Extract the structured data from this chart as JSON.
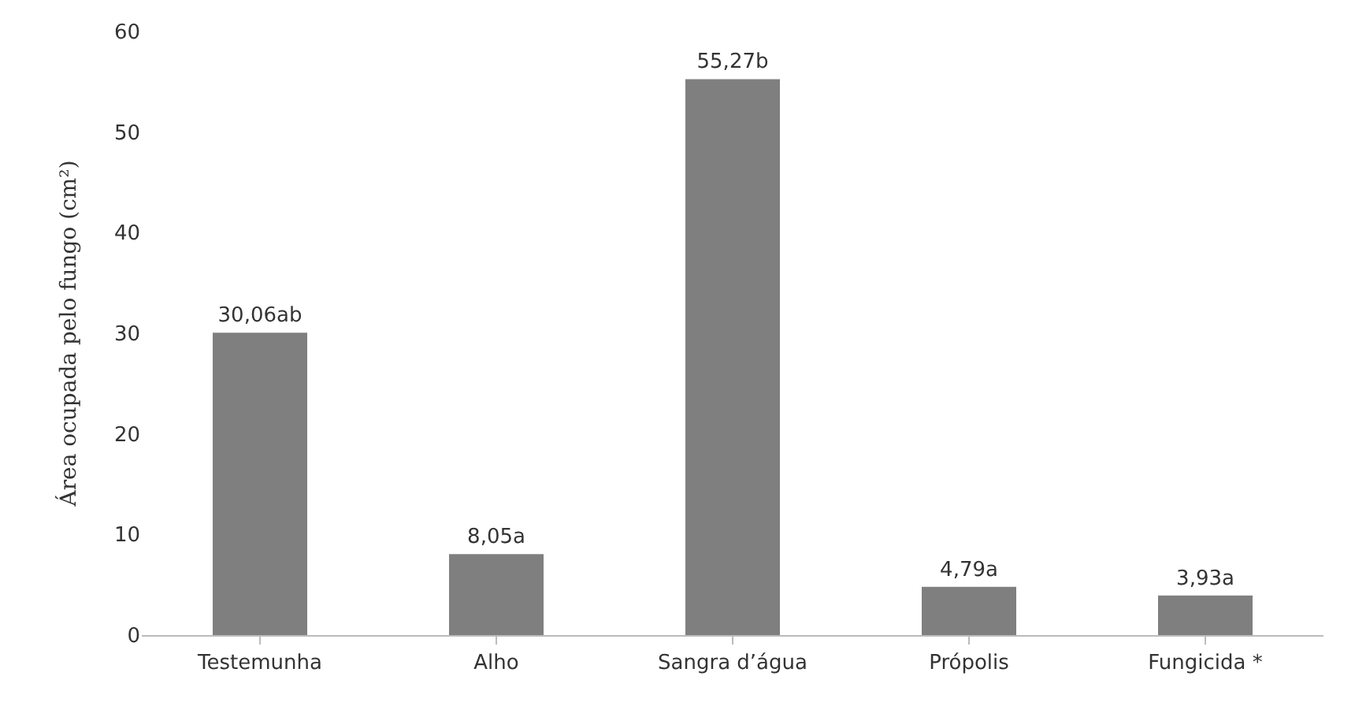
{
  "chart_data": {
    "type": "bar",
    "ylabel": "Área ocupada pelo fungo (cm²)",
    "categories": [
      "Testemunha",
      "Alho",
      "Sangra d’água",
      "Própolis",
      "Fungicida *"
    ],
    "values": [
      30.06,
      8.05,
      55.27,
      4.79,
      3.93
    ],
    "value_labels": [
      "30,06ab",
      "8,05a",
      "55,27b",
      "4,79a",
      "3,93a"
    ],
    "color": "#7f7f7f",
    "ylim": [
      0,
      60
    ],
    "yticks": [
      0,
      10,
      20,
      30,
      40,
      50,
      60
    ]
  }
}
